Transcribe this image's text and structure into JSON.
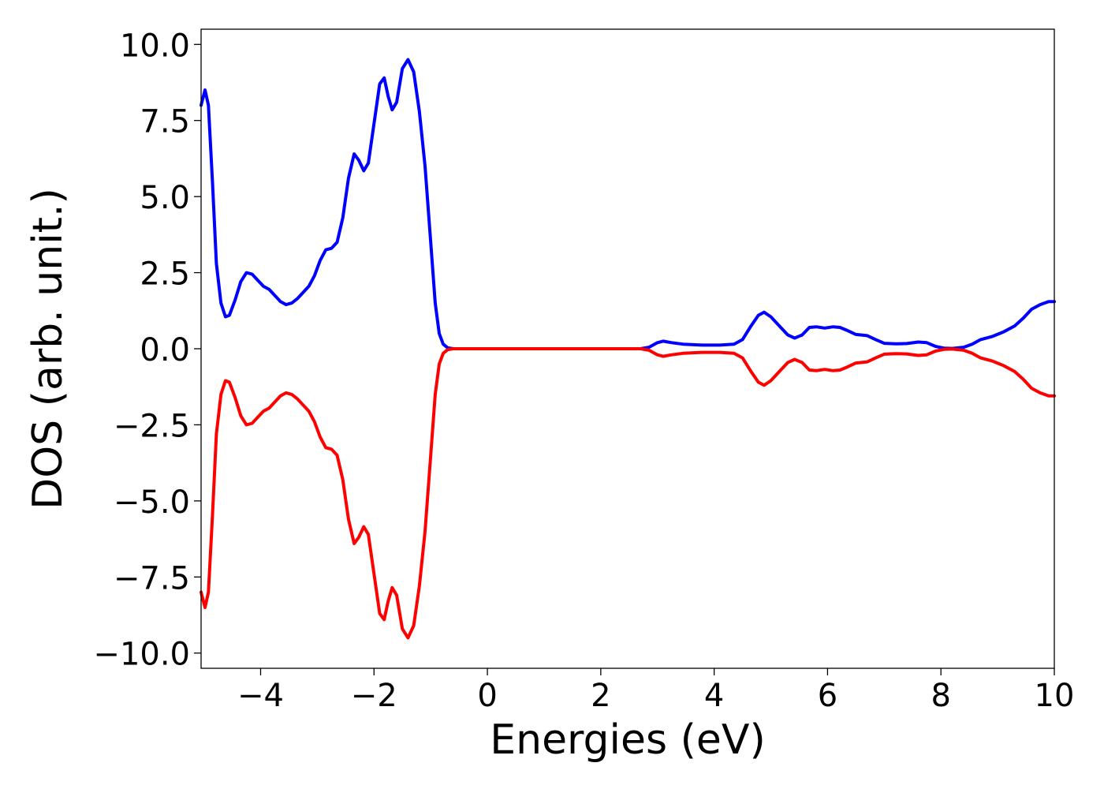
{
  "chart_data": {
    "type": "line",
    "xlabel": "Energies (eV)",
    "ylabel": "DOS (arb. unit.)",
    "xlim": [
      -5.05,
      10
    ],
    "ylim": [
      -10.5,
      10.5
    ],
    "xticks": [
      -4,
      -2,
      0,
      2,
      4,
      6,
      8,
      10
    ],
    "xtick_labels": [
      "−4",
      "−2",
      "0",
      "2",
      "4",
      "6",
      "8",
      "10"
    ],
    "yticks": [
      10,
      7.5,
      5,
      2.5,
      0,
      -2.5,
      -5,
      -7.5,
      -10
    ],
    "ytick_labels": [
      "10.0",
      "7.5",
      "5.0",
      "2.5",
      "0.0",
      "−2.5",
      "−5.0",
      "−7.5",
      "−10.0"
    ],
    "grid": false,
    "legend": "none",
    "series": [
      {
        "color": "#0000ff",
        "points": [
          [
            -5.05,
            8.0
          ],
          [
            -4.98,
            8.5
          ],
          [
            -4.92,
            8.0
          ],
          [
            -4.85,
            5.5
          ],
          [
            -4.78,
            2.8
          ],
          [
            -4.7,
            1.5
          ],
          [
            -4.62,
            1.05
          ],
          [
            -4.55,
            1.1
          ],
          [
            -4.45,
            1.6
          ],
          [
            -4.35,
            2.2
          ],
          [
            -4.25,
            2.5
          ],
          [
            -4.15,
            2.45
          ],
          [
            -4.05,
            2.25
          ],
          [
            -3.95,
            2.05
          ],
          [
            -3.85,
            1.95
          ],
          [
            -3.75,
            1.75
          ],
          [
            -3.65,
            1.55
          ],
          [
            -3.55,
            1.45
          ],
          [
            -3.45,
            1.5
          ],
          [
            -3.35,
            1.65
          ],
          [
            -3.25,
            1.85
          ],
          [
            -3.15,
            2.05
          ],
          [
            -3.05,
            2.4
          ],
          [
            -2.95,
            2.9
          ],
          [
            -2.85,
            3.25
          ],
          [
            -2.75,
            3.3
          ],
          [
            -2.65,
            3.5
          ],
          [
            -2.55,
            4.3
          ],
          [
            -2.45,
            5.6
          ],
          [
            -2.35,
            6.4
          ],
          [
            -2.27,
            6.2
          ],
          [
            -2.18,
            5.85
          ],
          [
            -2.1,
            6.1
          ],
          [
            -2.0,
            7.4
          ],
          [
            -1.9,
            8.7
          ],
          [
            -1.82,
            8.9
          ],
          [
            -1.75,
            8.3
          ],
          [
            -1.68,
            7.85
          ],
          [
            -1.6,
            8.1
          ],
          [
            -1.5,
            9.2
          ],
          [
            -1.4,
            9.5
          ],
          [
            -1.3,
            9.1
          ],
          [
            -1.2,
            7.8
          ],
          [
            -1.1,
            6.0
          ],
          [
            -1.0,
            3.5
          ],
          [
            -0.92,
            1.5
          ],
          [
            -0.85,
            0.5
          ],
          [
            -0.78,
            0.15
          ],
          [
            -0.7,
            0.03
          ],
          [
            -0.6,
            0.0
          ],
          [
            0.0,
            0.0
          ],
          [
            1.0,
            0.0
          ],
          [
            2.0,
            0.0
          ],
          [
            2.7,
            0.0
          ],
          [
            2.85,
            0.05
          ],
          [
            3.0,
            0.2
          ],
          [
            3.1,
            0.25
          ],
          [
            3.25,
            0.2
          ],
          [
            3.45,
            0.15
          ],
          [
            3.8,
            0.12
          ],
          [
            4.1,
            0.12
          ],
          [
            4.35,
            0.15
          ],
          [
            4.5,
            0.3
          ],
          [
            4.65,
            0.75
          ],
          [
            4.78,
            1.1
          ],
          [
            4.88,
            1.2
          ],
          [
            5.0,
            1.05
          ],
          [
            5.15,
            0.75
          ],
          [
            5.3,
            0.45
          ],
          [
            5.42,
            0.35
          ],
          [
            5.55,
            0.45
          ],
          [
            5.68,
            0.7
          ],
          [
            5.8,
            0.72
          ],
          [
            5.95,
            0.68
          ],
          [
            6.1,
            0.72
          ],
          [
            6.22,
            0.7
          ],
          [
            6.35,
            0.6
          ],
          [
            6.5,
            0.47
          ],
          [
            6.7,
            0.43
          ],
          [
            6.85,
            0.3
          ],
          [
            7.0,
            0.18
          ],
          [
            7.2,
            0.16
          ],
          [
            7.4,
            0.17
          ],
          [
            7.6,
            0.22
          ],
          [
            7.75,
            0.2
          ],
          [
            7.9,
            0.08
          ],
          [
            8.05,
            0.02
          ],
          [
            8.2,
            0.01
          ],
          [
            8.4,
            0.05
          ],
          [
            8.55,
            0.15
          ],
          [
            8.7,
            0.3
          ],
          [
            8.9,
            0.4
          ],
          [
            9.1,
            0.55
          ],
          [
            9.3,
            0.75
          ],
          [
            9.45,
            1.0
          ],
          [
            9.6,
            1.3
          ],
          [
            9.75,
            1.45
          ],
          [
            9.9,
            1.55
          ],
          [
            10.0,
            1.55
          ]
        ]
      },
      {
        "color": "#ff0000",
        "points": [
          [
            -5.05,
            -8.0
          ],
          [
            -4.98,
            -8.5
          ],
          [
            -4.92,
            -8.0
          ],
          [
            -4.85,
            -5.5
          ],
          [
            -4.78,
            -2.8
          ],
          [
            -4.7,
            -1.5
          ],
          [
            -4.62,
            -1.05
          ],
          [
            -4.55,
            -1.1
          ],
          [
            -4.45,
            -1.6
          ],
          [
            -4.35,
            -2.2
          ],
          [
            -4.25,
            -2.5
          ],
          [
            -4.15,
            -2.45
          ],
          [
            -4.05,
            -2.25
          ],
          [
            -3.95,
            -2.05
          ],
          [
            -3.85,
            -1.95
          ],
          [
            -3.75,
            -1.75
          ],
          [
            -3.65,
            -1.55
          ],
          [
            -3.55,
            -1.45
          ],
          [
            -3.45,
            -1.5
          ],
          [
            -3.35,
            -1.65
          ],
          [
            -3.25,
            -1.85
          ],
          [
            -3.15,
            -2.05
          ],
          [
            -3.05,
            -2.4
          ],
          [
            -2.95,
            -2.9
          ],
          [
            -2.85,
            -3.25
          ],
          [
            -2.75,
            -3.3
          ],
          [
            -2.65,
            -3.5
          ],
          [
            -2.55,
            -4.3
          ],
          [
            -2.45,
            -5.6
          ],
          [
            -2.35,
            -6.4
          ],
          [
            -2.27,
            -6.2
          ],
          [
            -2.18,
            -5.85
          ],
          [
            -2.1,
            -6.1
          ],
          [
            -2.0,
            -7.4
          ],
          [
            -1.9,
            -8.7
          ],
          [
            -1.82,
            -8.9
          ],
          [
            -1.75,
            -8.3
          ],
          [
            -1.68,
            -7.85
          ],
          [
            -1.6,
            -8.1
          ],
          [
            -1.5,
            -9.2
          ],
          [
            -1.4,
            -9.5
          ],
          [
            -1.3,
            -9.1
          ],
          [
            -1.2,
            -7.8
          ],
          [
            -1.1,
            -6.0
          ],
          [
            -1.0,
            -3.5
          ],
          [
            -0.92,
            -1.5
          ],
          [
            -0.85,
            -0.5
          ],
          [
            -0.78,
            -0.15
          ],
          [
            -0.7,
            -0.03
          ],
          [
            -0.6,
            0.0
          ],
          [
            0.0,
            0.0
          ],
          [
            1.0,
            0.0
          ],
          [
            2.0,
            0.0
          ],
          [
            2.7,
            0.0
          ],
          [
            2.85,
            -0.05
          ],
          [
            3.0,
            -0.2
          ],
          [
            3.1,
            -0.25
          ],
          [
            3.25,
            -0.2
          ],
          [
            3.45,
            -0.15
          ],
          [
            3.8,
            -0.12
          ],
          [
            4.1,
            -0.12
          ],
          [
            4.35,
            -0.15
          ],
          [
            4.5,
            -0.3
          ],
          [
            4.65,
            -0.75
          ],
          [
            4.78,
            -1.1
          ],
          [
            4.88,
            -1.2
          ],
          [
            5.0,
            -1.05
          ],
          [
            5.15,
            -0.75
          ],
          [
            5.3,
            -0.45
          ],
          [
            5.42,
            -0.35
          ],
          [
            5.55,
            -0.45
          ],
          [
            5.68,
            -0.7
          ],
          [
            5.8,
            -0.72
          ],
          [
            5.95,
            -0.68
          ],
          [
            6.1,
            -0.72
          ],
          [
            6.22,
            -0.7
          ],
          [
            6.35,
            -0.6
          ],
          [
            6.5,
            -0.47
          ],
          [
            6.7,
            -0.43
          ],
          [
            6.85,
            -0.3
          ],
          [
            7.0,
            -0.18
          ],
          [
            7.2,
            -0.16
          ],
          [
            7.4,
            -0.17
          ],
          [
            7.6,
            -0.22
          ],
          [
            7.75,
            -0.2
          ],
          [
            7.9,
            -0.08
          ],
          [
            8.05,
            -0.02
          ],
          [
            8.2,
            -0.01
          ],
          [
            8.4,
            -0.05
          ],
          [
            8.55,
            -0.15
          ],
          [
            8.7,
            -0.3
          ],
          [
            8.9,
            -0.4
          ],
          [
            9.1,
            -0.55
          ],
          [
            9.3,
            -0.75
          ],
          [
            9.45,
            -1.0
          ],
          [
            9.6,
            -1.3
          ],
          [
            9.75,
            -1.45
          ],
          [
            9.9,
            -1.55
          ],
          [
            10.0,
            -1.55
          ]
        ]
      }
    ]
  }
}
